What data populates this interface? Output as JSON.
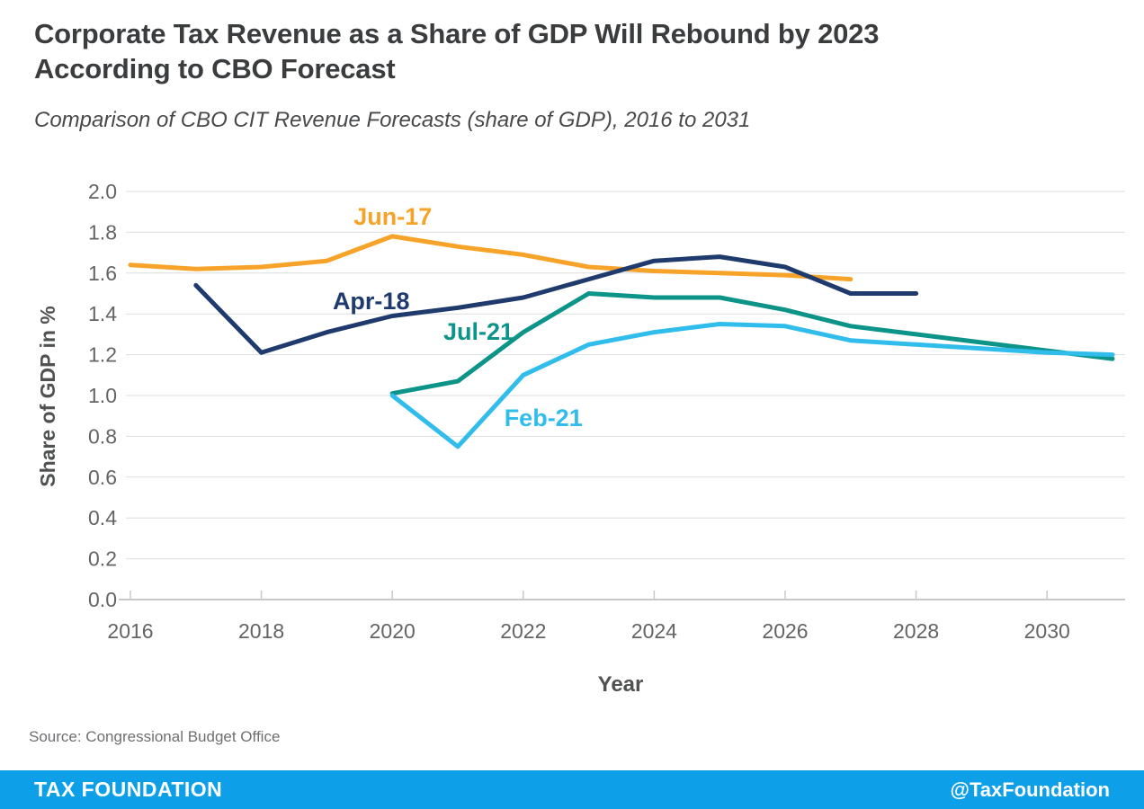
{
  "header": {
    "title": "Corporate Tax Revenue as a Share of GDP Will Rebound by 2023 According to CBO Forecast",
    "subtitle": "Comparison of CBO CIT Revenue Forecasts (share of GDP), 2016 to 2031"
  },
  "chart_data": {
    "type": "line",
    "title": "Corporate Tax Revenue as a Share of GDP Will Rebound by 2023 According to CBO Forecast",
    "subtitle": "Comparison of CBO CIT Revenue Forecasts (share of GDP), 2016 to 2031",
    "xlabel": "Year",
    "ylabel": "Share of GDP in %",
    "xlim": [
      2015.9,
      2031.3
    ],
    "ylim": [
      0.0,
      2.0
    ],
    "grid": true,
    "x_ticks": [
      2016,
      2018,
      2020,
      2022,
      2024,
      2026,
      2028,
      2030
    ],
    "y_ticks": [
      "2.0",
      "1.8",
      "1.6",
      "1.4",
      "1.2",
      "1.0",
      "0.8",
      "0.6",
      "0.4",
      "0.2",
      "0.0"
    ],
    "series": [
      {
        "name": "Jun-17",
        "color": "#F7A329",
        "x": [
          2016,
          2017,
          2018,
          2019,
          2020,
          2021,
          2022,
          2023,
          2024,
          2025,
          2026,
          2027
        ],
        "values": [
          1.64,
          1.62,
          1.63,
          1.66,
          1.78,
          1.73,
          1.69,
          1.63,
          1.61,
          1.6,
          1.59,
          1.57
        ],
        "label": {
          "text": "Jun-17",
          "x_year": 2019.41,
          "y_value": 1.837
        }
      },
      {
        "name": "Apr-18",
        "color": "#1F3A6D",
        "x": [
          2017,
          2018,
          2019,
          2020,
          2021,
          2022,
          2023,
          2024,
          2025,
          2026,
          2027,
          2028
        ],
        "values": [
          1.54,
          1.21,
          1.31,
          1.39,
          1.43,
          1.48,
          1.57,
          1.66,
          1.68,
          1.63,
          1.5,
          1.5
        ],
        "label": {
          "text": "Apr-18",
          "x_year": 2019.09,
          "y_value": 1.423
        }
      },
      {
        "name": "Jul-21",
        "color": "#0D9488",
        "x": [
          2020,
          2021,
          2022,
          2023,
          2024,
          2025,
          2026,
          2027,
          2028,
          2029,
          2030,
          2031
        ],
        "values": [
          1.01,
          1.07,
          1.31,
          1.5,
          1.48,
          1.48,
          1.42,
          1.34,
          1.3,
          1.26,
          1.22,
          1.18
        ],
        "label": {
          "text": "Jul-21",
          "x_year": 2020.78,
          "y_value": 1.273
        }
      },
      {
        "name": "Feb-21",
        "color": "#31BDEC",
        "x": [
          2020,
          2021,
          2022,
          2023,
          2024,
          2025,
          2026,
          2027,
          2028,
          2029,
          2030,
          2031
        ],
        "values": [
          1.0,
          0.75,
          1.1,
          1.25,
          1.31,
          1.35,
          1.34,
          1.27,
          1.25,
          1.23,
          1.21,
          1.2
        ],
        "label": {
          "text": "Feb-21",
          "x_year": 2021.71,
          "y_value": 0.85
        }
      }
    ],
    "legend_position": "inline-labels"
  },
  "source": {
    "text": "Source: Congressional Budget Office"
  },
  "footer": {
    "brand": "TAX FOUNDATION",
    "handle": "@TaxFoundation",
    "bar_color": "#0DA0E8"
  }
}
